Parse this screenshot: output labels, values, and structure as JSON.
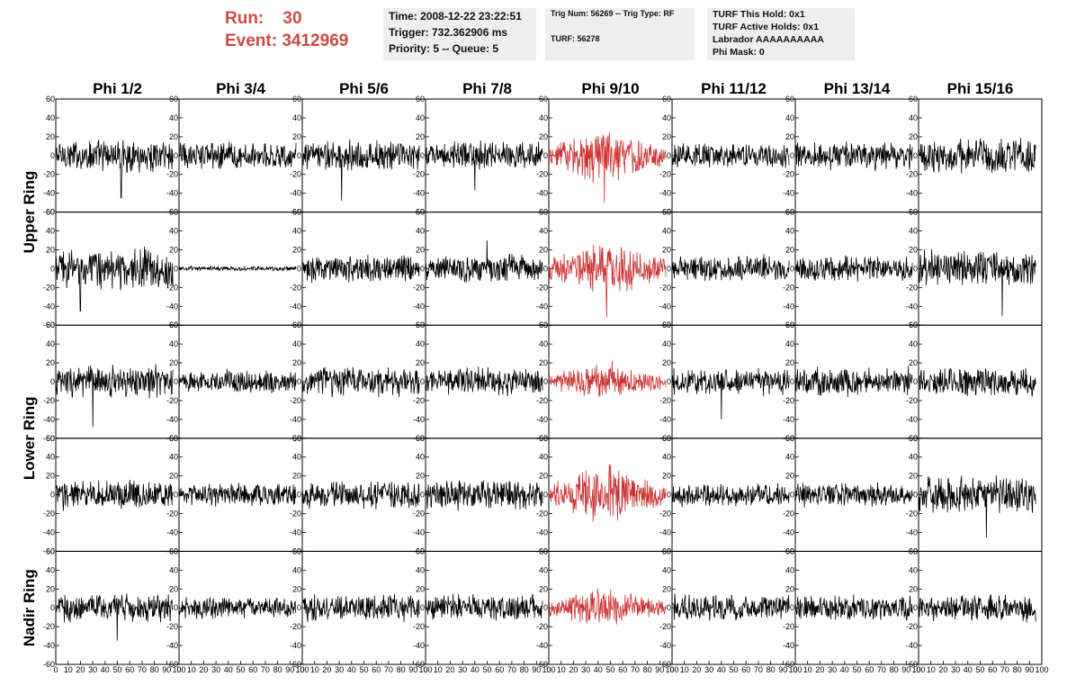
{
  "header": {
    "run_label": "Run:",
    "run_value": "30",
    "event_label": "Event:",
    "event_value": "3412969"
  },
  "info_boxes": {
    "time": "Time: 2008-12-22 23:22:51",
    "trigger": "Trigger: 732.362906 ms",
    "priority": "Priority: 5 -- Queue: 5",
    "trig_num": "Trig Num: 56269 -- Trig Type: RF",
    "turf": "TURF: 56278",
    "turf_this_hold": "TURF This Hold: 0x1",
    "turf_active_holds": "TURF Active Holds: 0x1",
    "labrador": "Labrador AAAAAAAAAA",
    "phi_mask": "Phi Mask: 0"
  },
  "colors": {
    "header_red": "#cd4a45",
    "normal_trace": "#000000",
    "highlight_trace": "#cc3333",
    "info_background": "#eeeeee"
  },
  "chart_data": {
    "type": "line",
    "columns": [
      "Phi 1/2",
      "Phi 3/4",
      "Phi 5/6",
      "Phi 7/8",
      "Phi 9/10",
      "Phi 11/12",
      "Phi 13/14",
      "Phi 15/16"
    ],
    "rings": [
      "Upper Ring",
      "Lower Ring",
      "Nadir Ring"
    ],
    "rows": 5,
    "row_ring_groups": [
      {
        "ring": "Upper Ring",
        "rows": [
          0,
          1
        ]
      },
      {
        "ring": "Lower Ring",
        "rows": [
          2,
          3
        ]
      },
      {
        "ring": "Nadir Ring",
        "rows": [
          4
        ]
      }
    ],
    "highlight_column": 4,
    "xlim": [
      0,
      100
    ],
    "ylim": [
      -60,
      60
    ],
    "x_ticks": [
      0,
      10,
      20,
      30,
      40,
      50,
      60,
      70,
      80,
      90,
      100
    ],
    "y_ticks": [
      -60,
      -40,
      -20,
      0,
      20,
      40,
      60
    ],
    "panels": [
      [
        {
          "amp": 14,
          "spike": [
            53,
            -45
          ]
        },
        {
          "amp": 12
        },
        {
          "amp": 13,
          "spike": [
            32,
            -48
          ]
        },
        {
          "amp": 12,
          "spike": [
            40,
            -37
          ]
        },
        {
          "amp": 18,
          "spike": [
            45,
            -50
          ]
        },
        {
          "amp": 11
        },
        {
          "amp": 12
        },
        {
          "amp": 15
        }
      ],
      [
        {
          "amp": 17,
          "spike": [
            20,
            -45
          ]
        },
        {
          "amp": 2
        },
        {
          "amp": 12
        },
        {
          "amp": 13,
          "spike": [
            50,
            30
          ]
        },
        {
          "amp": 18,
          "spike": [
            47,
            -52
          ]
        },
        {
          "amp": 11
        },
        {
          "amp": 11
        },
        {
          "amp": 16,
          "spike": [
            68,
            -50
          ]
        }
      ],
      [
        {
          "amp": 14,
          "spike": [
            30,
            -48
          ]
        },
        {
          "amp": 10
        },
        {
          "amp": 13
        },
        {
          "amp": 12
        },
        {
          "amp": 12
        },
        {
          "amp": 11,
          "spike": [
            40,
            -40
          ]
        },
        {
          "amp": 12
        },
        {
          "amp": 12
        }
      ],
      [
        {
          "amp": 13
        },
        {
          "amp": 10
        },
        {
          "amp": 12
        },
        {
          "amp": 13
        },
        {
          "amp": 18
        },
        {
          "amp": 10
        },
        {
          "amp": 10
        },
        {
          "amp": 16,
          "spike": [
            55,
            -45
          ]
        }
      ],
      [
        {
          "amp": 12,
          "spike": [
            50,
            -35
          ]
        },
        {
          "amp": 9
        },
        {
          "amp": 11
        },
        {
          "amp": 11
        },
        {
          "amp": 12
        },
        {
          "amp": 12
        },
        {
          "amp": 11
        },
        {
          "amp": 12
        }
      ]
    ]
  }
}
